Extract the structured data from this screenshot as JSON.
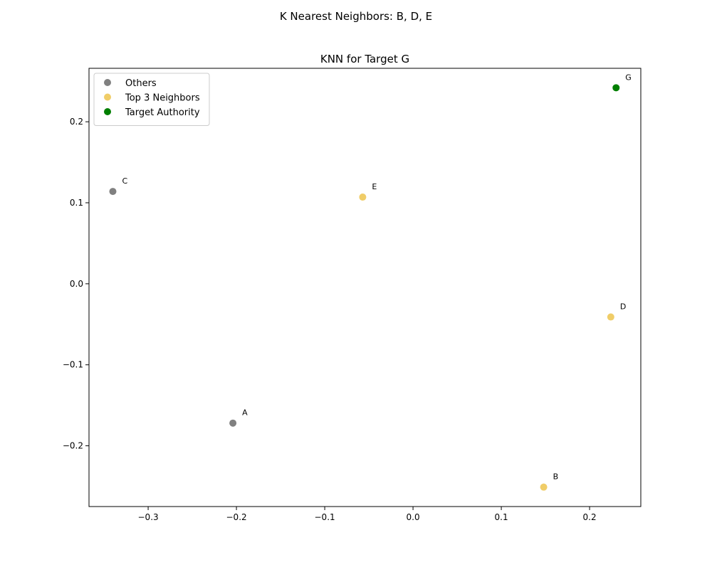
{
  "chart_data": {
    "type": "scatter",
    "suptitle": "K Nearest Neighbors: B, D, E",
    "title": "KNN for Target G",
    "xlabel": "",
    "ylabel": "",
    "xlim": [
      -0.367,
      0.258
    ],
    "ylim": [
      -0.275,
      0.266
    ],
    "xticks": [
      -0.3,
      -0.2,
      -0.1,
      0.0,
      0.1,
      0.2
    ],
    "xtick_labels": [
      "−0.3",
      "−0.2",
      "−0.1",
      "0.0",
      "0.1",
      "0.2"
    ],
    "yticks": [
      -0.2,
      -0.1,
      0.0,
      0.1,
      0.2
    ],
    "ytick_labels": [
      "−0.2",
      "−0.1",
      "0.0",
      "0.1",
      "0.2"
    ],
    "grid": false,
    "legend_position": "upper-left",
    "series": [
      {
        "name": "Others",
        "color": "#808080",
        "points": [
          {
            "label": "C",
            "x": -0.34,
            "y": 0.114
          },
          {
            "label": "A",
            "x": -0.204,
            "y": -0.172
          }
        ]
      },
      {
        "name": "Top 3 Neighbors",
        "color": "#f0cd68",
        "points": [
          {
            "label": "E",
            "x": -0.057,
            "y": 0.107
          },
          {
            "label": "D",
            "x": 0.224,
            "y": -0.041
          },
          {
            "label": "B",
            "x": 0.148,
            "y": -0.251
          }
        ]
      },
      {
        "name": "Target Authority",
        "color": "#007f00",
        "points": [
          {
            "label": "G",
            "x": 0.23,
            "y": 0.242
          }
        ]
      }
    ]
  }
}
